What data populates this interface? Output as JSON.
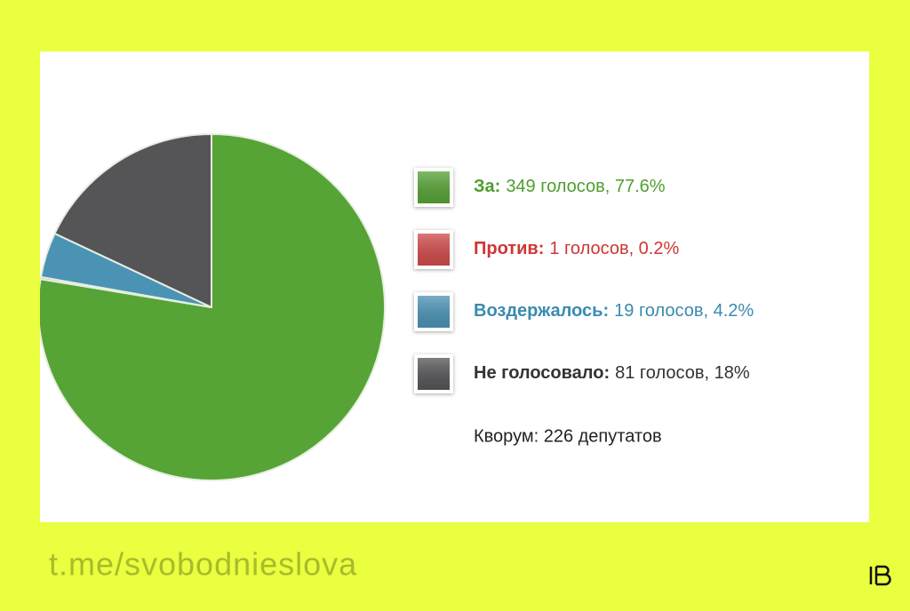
{
  "chart_data": {
    "type": "pie",
    "categories": [
      "За:",
      "Против:",
      "Воздержалось:",
      "Не голосовало:"
    ],
    "values": [
      77.6,
      0.2,
      4.2,
      18
    ],
    "value_labels": [
      "349 голосов, 77.6%",
      "1 голосов, 0.2%",
      "19 голосов, 4.2%",
      "81 голосов, 18%"
    ],
    "colors": [
      "#56a336",
      "#d04a4a",
      "#4a93b5",
      "#555558"
    ],
    "text_colors": [
      "#4f9e2f",
      "#cf3535",
      "#3a8bb0",
      "#333333"
    ],
    "note": "Кворум: 226 депутатов"
  },
  "footer": {
    "link": "t.me/svobodnieslova"
  }
}
